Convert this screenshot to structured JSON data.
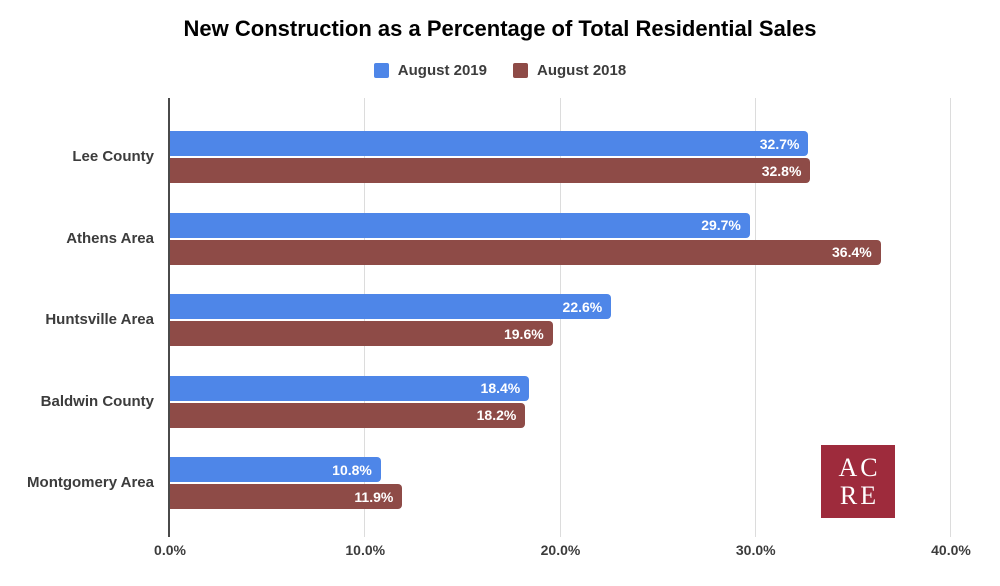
{
  "chart_data": {
    "type": "bar",
    "orientation": "horizontal",
    "title": "New Construction as a Percentage of Total Residential Sales",
    "categories": [
      "Lee County",
      "Athens Area",
      "Huntsville Area",
      "Baldwin County",
      "Montgomery Area"
    ],
    "series": [
      {
        "name": "August 2019",
        "color": "#4e86e8",
        "values": [
          32.7,
          29.7,
          22.6,
          18.4,
          10.8
        ],
        "labels": [
          "32.7%",
          "29.7%",
          "22.6%",
          "18.4%",
          "10.8%"
        ]
      },
      {
        "name": "August 2018",
        "color": "#8e4b47",
        "values": [
          32.8,
          36.4,
          19.6,
          18.2,
          11.9
        ],
        "labels": [
          "32.8%",
          "36.4%",
          "19.6%",
          "18.2%",
          "11.9%"
        ]
      }
    ],
    "xlabel": "",
    "ylabel": "",
    "xlim": [
      0,
      40
    ],
    "x_ticks": [
      {
        "value": 0,
        "label": "0.0%"
      },
      {
        "value": 10,
        "label": "10.0%"
      },
      {
        "value": 20,
        "label": "20.0%"
      },
      {
        "value": 30,
        "label": "30.0%"
      },
      {
        "value": 40,
        "label": "40.0%"
      }
    ],
    "grid": true,
    "legend_position": "top",
    "value_label_color": "#ffffff",
    "axis_line_color": "#4a4a4a",
    "gridline_color": "#dcdcdc"
  },
  "logo": {
    "line1": "AC",
    "line2": "RE",
    "background": "#9e2b3c",
    "text_color": "#ffffff"
  }
}
